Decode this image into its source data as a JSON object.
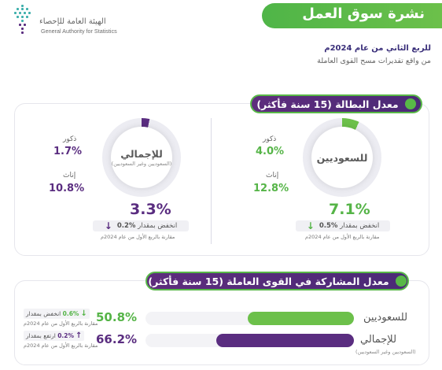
{
  "header": {
    "title": "نشرة سوق العمل",
    "subtitle_line1": "للربع الثاني من عام 2024م",
    "subtitle_line2": "من واقع تقديرات مسح القوى العاملة"
  },
  "logo": {
    "name_ar": "الهيئة العامة للإحصاء",
    "name_en": "General Authority for Statistics"
  },
  "unemployment": {
    "section_title": "معدل البطالة (15 سنة فأكثر)",
    "saudi": {
      "label": "للسعوديين",
      "rate": "7.1%",
      "rate_value": 7.1,
      "male_label": "ذكور",
      "male_value": "4.0%",
      "female_label": "إناث",
      "female_value": "12.8%",
      "change_text": "انخفض بمقدار",
      "change_value": "0.5%",
      "change_note": "مقارنة بالربع الأول من عام 2024م",
      "color": "#6cc04a"
    },
    "total": {
      "label": "للإجمالي",
      "sublabel": "(السعوديين وغير السعوديين)",
      "rate": "3.3%",
      "rate_value": 3.3,
      "male_label": "ذكور",
      "male_value": "1.7%",
      "female_label": "إناث",
      "female_value": "10.8%",
      "change_text": "انخفض بمقدار",
      "change_value": "0.2%",
      "change_note": "مقارنة بالربع الأول من عام 2024م",
      "color": "#5a2d80"
    }
  },
  "participation": {
    "section_title": "معدل المشاركة في القوى العاملة (15 سنة فأكثر)",
    "saudi": {
      "label": "للسعوديين",
      "value": "50.8%",
      "value_num": 50.8,
      "change_text": "انخفض بمقدار",
      "change_value": "0.6%",
      "change_note": "مقارنة بالربع الأول من عام 2024م",
      "color": "#6cc04a"
    },
    "total": {
      "label": "للإجمالي",
      "sublabel": "(السعوديين وغير السعوديين)",
      "value": "66.2%",
      "value_num": 66.2,
      "change_text": "ارتفع بمقدار",
      "change_value": "0.2%",
      "change_note": "مقارنة بالربع الأول من عام 2024م",
      "color": "#5a2d80"
    }
  }
}
